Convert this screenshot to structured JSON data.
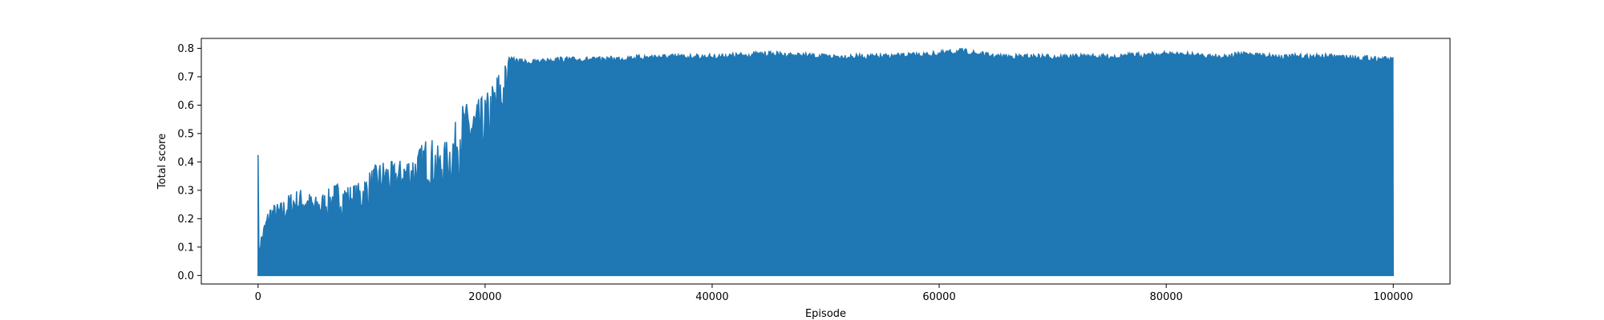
{
  "chart_data": {
    "type": "line",
    "title": "",
    "xlabel": "Episode",
    "ylabel": "Total score",
    "xlim": [
      -5000,
      105000
    ],
    "ylim": [
      -0.03,
      0.835
    ],
    "xticks": [
      0,
      20000,
      40000,
      60000,
      80000,
      100000
    ],
    "xtick_labels": [
      "0",
      "20000",
      "40000",
      "60000",
      "80000",
      "100000"
    ],
    "yticks": [
      0.0,
      0.1,
      0.2,
      0.3,
      0.4,
      0.5,
      0.6,
      0.7,
      0.8
    ],
    "ytick_labels": [
      "0.0",
      "0.1",
      "0.2",
      "0.3",
      "0.4",
      "0.5",
      "0.6",
      "0.7",
      "0.8"
    ],
    "grid": false,
    "legend": "none",
    "series": [
      {
        "color": "#1f77b4",
        "x_range": [
          0,
          100000
        ],
        "min_envelope": {
          "x": [
            0,
            100000
          ],
          "y": [
            0.0,
            0.0
          ]
        },
        "max_envelope": {
          "x": [
            0,
            300,
            1000,
            2000,
            3000,
            4000,
            5000,
            6000,
            7000,
            8000,
            9000,
            10000,
            11000,
            12000,
            13000,
            14000,
            15000,
            16000,
            17000,
            18000,
            19000,
            20000,
            20500,
            21000,
            21500,
            22000,
            24000,
            26000,
            28000,
            30000,
            35000,
            40000,
            45000,
            50000,
            55000,
            60000,
            62000,
            65000,
            70000,
            75000,
            80000,
            85000,
            87000,
            90000,
            95000,
            100000
          ],
          "y": [
            0.09,
            0.15,
            0.25,
            0.26,
            0.3,
            0.31,
            0.28,
            0.3,
            0.33,
            0.32,
            0.33,
            0.38,
            0.41,
            0.4,
            0.42,
            0.44,
            0.5,
            0.45,
            0.5,
            0.61,
            0.61,
            0.64,
            0.67,
            0.72,
            0.75,
            0.77,
            0.76,
            0.77,
            0.77,
            0.77,
            0.78,
            0.78,
            0.79,
            0.78,
            0.78,
            0.79,
            0.8,
            0.78,
            0.78,
            0.78,
            0.79,
            0.78,
            0.79,
            0.78,
            0.78,
            0.77
          ]
        }
      }
    ]
  }
}
